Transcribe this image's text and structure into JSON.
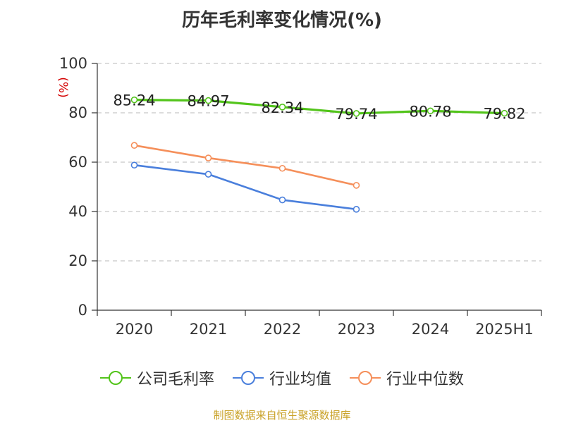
{
  "chart_data": {
    "type": "line",
    "title": "历年毛利率变化情况(%)",
    "ylabel": "(%)",
    "categories": [
      "2020",
      "2021",
      "2022",
      "2023",
      "2024",
      "2025H1"
    ],
    "ylim": [
      0,
      100
    ],
    "yticks": [
      0,
      20,
      40,
      60,
      80,
      100
    ],
    "grid": true,
    "legend_position": "bottom",
    "series": [
      {
        "name": "公司毛利率",
        "color": "#52c41a",
        "values": [
          85.24,
          84.97,
          82.34,
          79.74,
          80.78,
          79.82
        ],
        "labels": [
          "85.24",
          "84.97",
          "82.34",
          "79.74",
          "80.78",
          "79.82"
        ]
      },
      {
        "name": "行业均值",
        "color": "#4a7fdc",
        "values": [
          58.8,
          55.1,
          44.7,
          40.9,
          null,
          null
        ]
      },
      {
        "name": "行业中位数",
        "color": "#f58f5a",
        "values": [
          66.8,
          61.7,
          57.5,
          50.6,
          null,
          null
        ]
      }
    ]
  },
  "source_text": "制图数据来自恒生聚源数据库"
}
